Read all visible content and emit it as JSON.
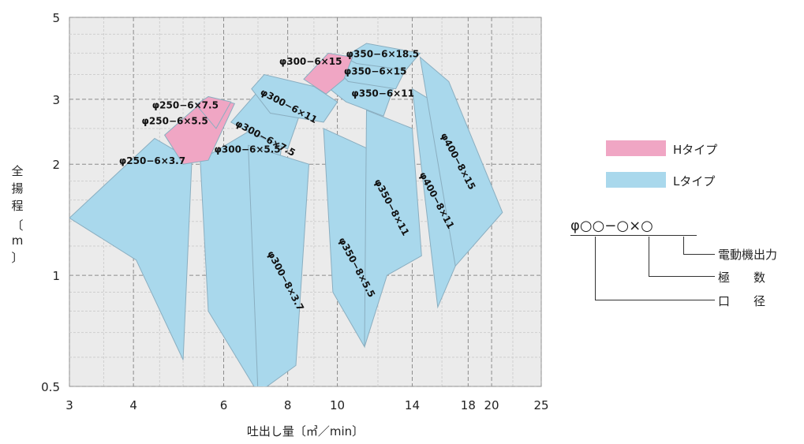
{
  "chart_data": {
    "type": "area",
    "title": "",
    "xlabel": "吐出し量〔㎥／min〕",
    "ylabel": "全揚程〔m〕",
    "xscale": "log",
    "yscale": "log",
    "xlim": [
      3,
      25
    ],
    "ylim": [
      0.5,
      5
    ],
    "xticks": [
      3,
      4,
      6,
      8,
      10,
      14,
      18,
      20,
      25
    ],
    "yticks": [
      0.5,
      1,
      2,
      3,
      5
    ],
    "ytick_labels": [
      "0.5",
      "1",
      "2",
      "3",
      "5"
    ],
    "grid": true,
    "series": [
      {
        "name": "Hタイプ",
        "color": "#f0a6c4"
      },
      {
        "name": "Lタイプ",
        "color": "#a9d8ec"
      }
    ],
    "regions": [
      {
        "label": "φ250−6×3.7",
        "type": "L",
        "points": [
          [
            3.0,
            1.43
          ],
          [
            4.4,
            2.35
          ],
          [
            5.2,
            2.05
          ],
          [
            5.0,
            0.59
          ],
          [
            4.05,
            1.1
          ]
        ]
      },
      {
        "label": "φ250−6×5.5",
        "type": "H",
        "points": [
          [
            4.6,
            2.4
          ],
          [
            5.6,
            3.05
          ],
          [
            6.3,
            2.92
          ],
          [
            5.6,
            2.05
          ],
          [
            5.0,
            2.0
          ]
        ]
      },
      {
        "label": "φ250−6×7.5",
        "type": "H",
        "points": [
          [
            5.3,
            2.9
          ],
          [
            5.6,
            3.05
          ],
          [
            6.2,
            2.95
          ],
          [
            5.8,
            2.5
          ]
        ]
      },
      {
        "label": "φ300−6×5.5",
        "type": "L",
        "points": [
          [
            5.4,
            2.05
          ],
          [
            6.7,
            2.45
          ],
          [
            7.8,
            2.35
          ],
          [
            7.0,
            0.48
          ],
          [
            5.6,
            0.8
          ]
        ]
      },
      {
        "label": "φ300−6×7.5",
        "type": "L",
        "points": [
          [
            6.2,
            2.6
          ],
          [
            7.0,
            3.15
          ],
          [
            8.5,
            2.8
          ],
          [
            8.0,
            2.2
          ],
          [
            6.7,
            2.45
          ]
        ]
      },
      {
        "label": "φ300−6×11",
        "type": "L",
        "points": [
          [
            6.8,
            3.2
          ],
          [
            7.2,
            3.5
          ],
          [
            9.0,
            3.25
          ],
          [
            10.0,
            2.95
          ],
          [
            9.4,
            2.6
          ],
          [
            7.4,
            2.75
          ]
        ]
      },
      {
        "label": "φ300−6×15",
        "type": "H",
        "points": [
          [
            8.6,
            3.4
          ],
          [
            9.6,
            4.0
          ],
          [
            10.7,
            3.9
          ],
          [
            10.3,
            3.4
          ],
          [
            9.5,
            3.1
          ]
        ]
      },
      {
        "label": "φ300−8×3.7",
        "type": "L",
        "points": [
          [
            6.7,
            2.25
          ],
          [
            8.8,
            2.0
          ],
          [
            8.3,
            0.57
          ],
          [
            7.0,
            0.48
          ]
        ]
      },
      {
        "label": "φ350−6×11",
        "type": "L",
        "points": [
          [
            9.4,
            3.3
          ],
          [
            10.2,
            3.65
          ],
          [
            13.0,
            3.35
          ],
          [
            12.3,
            2.7
          ],
          [
            10.4,
            2.95
          ]
        ]
      },
      {
        "label": "φ350−6×15",
        "type": "L",
        "points": [
          [
            10.0,
            3.6
          ],
          [
            10.8,
            3.95
          ],
          [
            13.7,
            3.7
          ],
          [
            13.0,
            3.2
          ],
          [
            10.5,
            3.35
          ]
        ]
      },
      {
        "label": "φ350−6×18.5",
        "type": "L",
        "points": [
          [
            10.3,
            3.9
          ],
          [
            11.4,
            4.25
          ],
          [
            14.5,
            4.0
          ],
          [
            13.6,
            3.6
          ],
          [
            10.9,
            3.75
          ]
        ]
      },
      {
        "label": "φ350−8×5.5",
        "type": "L",
        "points": [
          [
            9.4,
            2.5
          ],
          [
            11.5,
            2.2
          ],
          [
            11.3,
            0.64
          ],
          [
            9.8,
            0.9
          ]
        ]
      },
      {
        "label": "φ350−8×11",
        "type": "L",
        "points": [
          [
            11.4,
            2.8
          ],
          [
            14.0,
            2.5
          ],
          [
            14.6,
            1.13
          ],
          [
            12.5,
            1.0
          ],
          [
            11.3,
            0.64
          ]
        ]
      },
      {
        "label": "φ400−8×11",
        "type": "L",
        "points": [
          [
            14.0,
            3.2
          ],
          [
            16.8,
            2.75
          ],
          [
            17.0,
            1.06
          ],
          [
            15.7,
            0.82
          ]
        ]
      },
      {
        "label": "φ400−8×15",
        "type": "L",
        "points": [
          [
            14.5,
            3.9
          ],
          [
            16.5,
            3.35
          ],
          [
            21.0,
            1.48
          ],
          [
            17.0,
            1.06
          ]
        ]
      }
    ],
    "labels": [
      {
        "text": "φ250−6×7.5",
        "x": 4.35,
        "y": 2.83,
        "rotate": 0
      },
      {
        "text": "φ250−6×5.5",
        "x": 4.15,
        "y": 2.57,
        "rotate": 0
      },
      {
        "text": "φ250−6×3.7",
        "x": 3.75,
        "y": 2.0,
        "rotate": 0
      },
      {
        "text": "φ300−6×5.5",
        "x": 5.75,
        "y": 2.15,
        "rotate": 0
      },
      {
        "text": "φ300−6×7.5",
        "x": 6.3,
        "y": 2.55,
        "rotate": 28
      },
      {
        "text": "φ300−6×11",
        "x": 7.05,
        "y": 3.1,
        "rotate": 28
      },
      {
        "text": "φ300−6×15",
        "x": 7.7,
        "y": 3.72,
        "rotate": 0
      },
      {
        "text": "φ350−6×18.5",
        "x": 10.4,
        "y": 3.9,
        "rotate": 0
      },
      {
        "text": "φ350−6×15",
        "x": 10.3,
        "y": 3.5,
        "rotate": 0
      },
      {
        "text": "φ350−6×11",
        "x": 10.65,
        "y": 3.05,
        "rotate": 0
      },
      {
        "text": "φ300−8×3.7",
        "x": 7.3,
        "y": 1.15,
        "rotate": 62
      },
      {
        "text": "φ350−8×5.5",
        "x": 10.05,
        "y": 1.25,
        "rotate": 62
      },
      {
        "text": "φ350−8×11",
        "x": 11.8,
        "y": 1.8,
        "rotate": 62
      },
      {
        "text": "φ400−8×11",
        "x": 14.45,
        "y": 1.88,
        "rotate": 62
      },
      {
        "text": "φ400−8×15",
        "x": 15.9,
        "y": 2.4,
        "rotate": 62
      }
    ]
  },
  "legend": [
    {
      "label": "Hタイプ",
      "color": "#f0a6c4"
    },
    {
      "label": "Lタイプ",
      "color": "#a9d8ec"
    }
  ],
  "model_key": {
    "code": "φ○○−○×○",
    "motor_output": "電動機出力",
    "poles": "極　　数",
    "bore": "口　　径"
  }
}
